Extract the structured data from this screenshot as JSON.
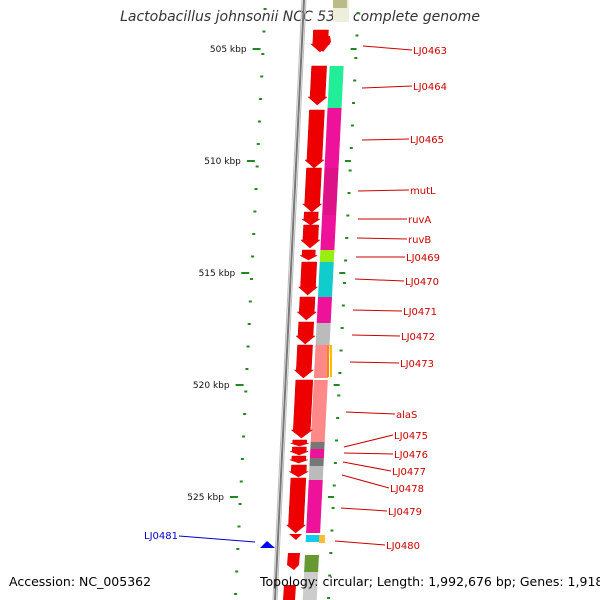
{
  "title": "Lactobacillus johnsonii NCC 533, complete genome",
  "footer": {
    "accession": "Accession: NC_005362",
    "topology": "Topology: circular; Length: 1,992,676 bp; Genes: 1,918"
  },
  "scale_ticks": [
    "505 kbp",
    "510 kbp",
    "515 kbp",
    "520 kbp",
    "525 kbp"
  ],
  "genes": [
    {
      "label": "LJ0463",
      "color": "#cc0000",
      "strand": "minus"
    },
    {
      "label": "LJ0464",
      "color": "#cc0000",
      "strand": "minus"
    },
    {
      "label": "LJ0465",
      "color": "#cc0000",
      "strand": "minus"
    },
    {
      "label": "mutL",
      "color": "#cc0000",
      "strand": "minus"
    },
    {
      "label": "ruvA",
      "color": "#cc0000",
      "strand": "minus"
    },
    {
      "label": "ruvB",
      "color": "#cc0000",
      "strand": "minus"
    },
    {
      "label": "LJ0469",
      "color": "#cc0000",
      "strand": "minus"
    },
    {
      "label": "LJ0470",
      "color": "#cc0000",
      "strand": "minus"
    },
    {
      "label": "LJ0471",
      "color": "#cc0000",
      "strand": "minus"
    },
    {
      "label": "LJ0472",
      "color": "#cc0000",
      "strand": "minus"
    },
    {
      "label": "LJ0473",
      "color": "#cc0000",
      "strand": "minus"
    },
    {
      "label": "alaS",
      "color": "#cc0000",
      "strand": "minus"
    },
    {
      "label": "LJ0475",
      "color": "#cc0000",
      "strand": "minus"
    },
    {
      "label": "LJ0476",
      "color": "#cc0000",
      "strand": "minus"
    },
    {
      "label": "LJ0477",
      "color": "#cc0000",
      "strand": "minus"
    },
    {
      "label": "LJ0478",
      "color": "#cc0000",
      "strand": "minus"
    },
    {
      "label": "LJ0479",
      "color": "#cc0000",
      "strand": "minus"
    },
    {
      "label": "LJ0480",
      "color": "#cc0000",
      "strand": "minus"
    },
    {
      "label": "LJ0481",
      "color": "#0000cc",
      "strand": "plus"
    }
  ],
  "colors": {
    "minus_strand_gene": "#ee0000",
    "plus_strand_gene": "#0000ff",
    "gene_label": "#cc0000",
    "plus_gene_label": "#0000cc",
    "scale_tick": "#228822",
    "backbone": "#888888"
  }
}
